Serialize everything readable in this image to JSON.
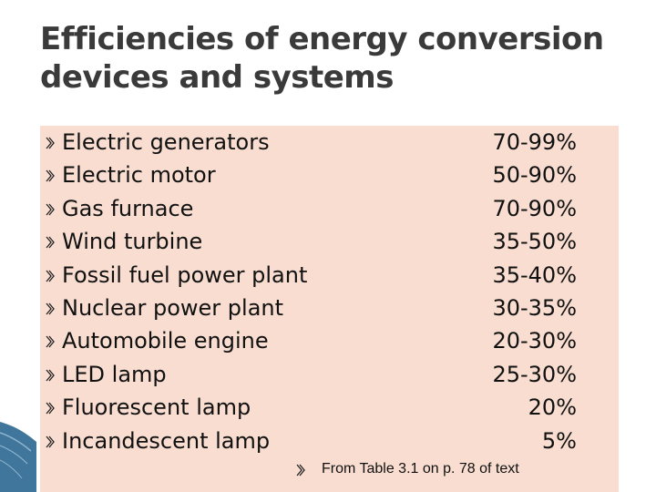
{
  "slide": {
    "title": "Efficiencies of energy conversion devices and systems",
    "bullet_icon": "ornament-bullet-icon",
    "colors": {
      "content_background": "#f8ddd0",
      "title_text": "#3a3a3a",
      "body_text": "#111111",
      "decoration": "#1f5e8a"
    },
    "rows": [
      {
        "label": "Electric generators",
        "value": "70-99%"
      },
      {
        "label": "Electric motor",
        "value": "50-90%"
      },
      {
        "label": "Gas furnace",
        "value": "70-90%"
      },
      {
        "label": "Wind turbine",
        "value": "35-50%"
      },
      {
        "label": "Fossil fuel power plant",
        "value": "35-40%"
      },
      {
        "label": "Nuclear power plant",
        "value": "30-35%"
      },
      {
        "label": "Automobile engine",
        "value": "20-30%"
      },
      {
        "label": "LED lamp",
        "value": "25-30%"
      },
      {
        "label": "Fluorescent lamp",
        "value": "20%"
      },
      {
        "label": "Incandescent lamp",
        "value": "  5%"
      }
    ],
    "footnote": "From Table 3.1 on p. 78 of text"
  }
}
